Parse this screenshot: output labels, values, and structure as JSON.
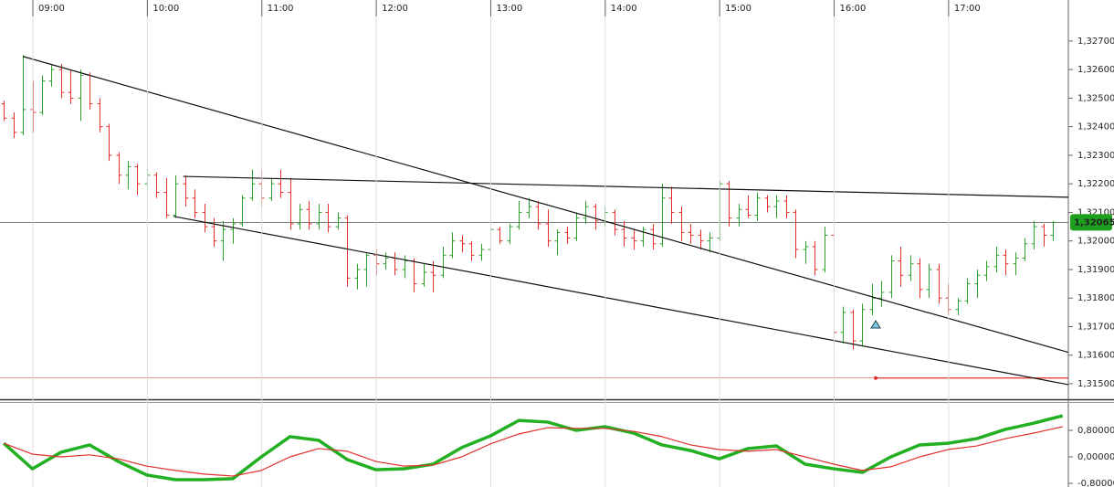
{
  "chart_data": [
    {
      "type": "ohlc",
      "x": [
        525,
        530,
        535,
        540,
        545,
        550,
        555,
        560,
        565,
        570,
        575,
        580,
        585,
        590,
        595,
        600,
        605,
        610,
        615,
        620,
        625,
        630,
        635,
        640,
        645,
        650,
        655,
        660,
        665,
        670,
        675,
        680,
        685,
        690,
        695,
        700,
        705,
        710,
        715,
        720,
        725,
        730,
        735,
        740,
        745,
        750,
        755,
        760,
        765,
        770,
        775,
        780,
        785,
        790,
        795,
        800,
        805,
        810,
        815,
        820,
        825,
        830,
        835,
        840,
        845,
        850,
        855,
        860,
        865,
        870,
        875,
        880,
        885,
        890,
        895,
        900,
        905,
        910,
        915,
        920,
        925,
        930,
        935,
        940,
        945,
        950,
        955,
        960,
        965,
        970,
        975,
        980,
        985,
        990,
        995,
        1000,
        1005,
        1010,
        1015,
        1020,
        1025,
        1030,
        1035,
        1040,
        1045,
        1050,
        1055,
        1060,
        1065,
        1070,
        1075
      ],
      "open": [
        1.3248,
        1.3243,
        1.3238,
        1.3246,
        1.3245,
        1.3256,
        1.326,
        1.3252,
        1.325,
        1.3258,
        1.3248,
        1.324,
        1.323,
        1.3223,
        1.3226,
        1.322,
        1.3223,
        1.3217,
        1.3209,
        1.322,
        1.3215,
        1.321,
        1.3205,
        1.32,
        1.3204,
        1.3206,
        1.3215,
        1.322,
        1.3215,
        1.322,
        1.3217,
        1.3206,
        1.3211,
        1.3206,
        1.321,
        1.3205,
        1.3208,
        1.3187,
        1.319,
        1.3195,
        1.3192,
        1.3194,
        1.319,
        1.3193,
        1.3185,
        1.3189,
        1.3188,
        1.3195,
        1.32,
        1.3199,
        1.3195,
        1.3197,
        1.3204,
        1.32,
        1.3205,
        1.321,
        1.3212,
        1.3206,
        1.32,
        1.3203,
        1.3201,
        1.3208,
        1.3212,
        1.3207,
        1.321,
        1.3204,
        1.3201,
        1.32,
        1.3204,
        1.3199,
        1.3215,
        1.321,
        1.3203,
        1.3202,
        1.32,
        1.3201,
        1.322,
        1.3208,
        1.3211,
        1.3209,
        1.3215,
        1.3212,
        1.3214,
        1.321,
        1.3197,
        1.3198,
        1.319,
        1.3202,
        1.3168,
        1.3175,
        1.3165,
        1.3176,
        1.318,
        1.3182,
        1.3193,
        1.3188,
        1.3192,
        1.3183,
        1.319,
        1.318,
        1.3176,
        1.3179,
        1.3185,
        1.3188,
        1.3191,
        1.3195,
        1.3192,
        1.3194,
        1.3199,
        1.3205,
        1.3202
      ],
      "high": [
        1.3249,
        1.3245,
        1.3265,
        1.3256,
        1.3258,
        1.3262,
        1.3262,
        1.326,
        1.326,
        1.3259,
        1.325,
        1.3241,
        1.3231,
        1.3228,
        1.3227,
        1.3226,
        1.3224,
        1.3222,
        1.3223,
        1.3223,
        1.3218,
        1.3213,
        1.3208,
        1.3207,
        1.3208,
        1.3216,
        1.3225,
        1.3225,
        1.3222,
        1.3225,
        1.3222,
        1.3213,
        1.3214,
        1.3213,
        1.3213,
        1.321,
        1.3209,
        1.3192,
        1.3196,
        1.3197,
        1.3196,
        1.3196,
        1.3195,
        1.3194,
        1.3192,
        1.3193,
        1.3198,
        1.3203,
        1.3202,
        1.32,
        1.3199,
        1.3205,
        1.3205,
        1.3206,
        1.3214,
        1.3215,
        1.3214,
        1.3211,
        1.3204,
        1.3205,
        1.321,
        1.3214,
        1.3213,
        1.3212,
        1.3211,
        1.3207,
        1.3204,
        1.3205,
        1.3206,
        1.322,
        1.3219,
        1.3212,
        1.3206,
        1.3204,
        1.3203,
        1.3221,
        1.3221,
        1.3213,
        1.3216,
        1.3217,
        1.3216,
        1.3216,
        1.3216,
        1.3211,
        1.32,
        1.32,
        1.3205,
        1.3203,
        1.3177,
        1.3176,
        1.3178,
        1.3185,
        1.3186,
        1.3195,
        1.3198,
        1.3195,
        1.3194,
        1.3192,
        1.3192,
        1.3185,
        1.318,
        1.3187,
        1.319,
        1.3193,
        1.3198,
        1.3197,
        1.3196,
        1.3201,
        1.3207,
        1.3206,
        1.3207
      ],
      "low": [
        1.3242,
        1.3236,
        1.3237,
        1.3238,
        1.3244,
        1.3254,
        1.325,
        1.3248,
        1.3242,
        1.3246,
        1.3238,
        1.3228,
        1.322,
        1.3218,
        1.3216,
        1.3218,
        1.3215,
        1.3208,
        1.3208,
        1.3212,
        1.3208,
        1.3203,
        1.3198,
        1.3193,
        1.3199,
        1.3205,
        1.3214,
        1.3212,
        1.3214,
        1.3215,
        1.3204,
        1.3204,
        1.3204,
        1.3204,
        1.3203,
        1.3204,
        1.3184,
        1.3183,
        1.3184,
        1.3188,
        1.319,
        1.3188,
        1.3187,
        1.3182,
        1.3184,
        1.3182,
        1.3187,
        1.3194,
        1.3196,
        1.3193,
        1.3193,
        1.3196,
        1.3199,
        1.3199,
        1.3204,
        1.3208,
        1.3204,
        1.3198,
        1.3195,
        1.3199,
        1.32,
        1.3206,
        1.3204,
        1.3205,
        1.3202,
        1.3198,
        1.3197,
        1.3198,
        1.3197,
        1.3198,
        1.3206,
        1.32,
        1.3199,
        1.3197,
        1.3196,
        1.32,
        1.3205,
        1.3205,
        1.3208,
        1.3207,
        1.321,
        1.3208,
        1.3208,
        1.3194,
        1.3192,
        1.3188,
        1.3189,
        1.3163,
        1.3164,
        1.3162,
        1.3163,
        1.3174,
        1.3177,
        1.318,
        1.3184,
        1.3186,
        1.318,
        1.318,
        1.3178,
        1.3174,
        1.3174,
        1.3178,
        1.318,
        1.3186,
        1.3189,
        1.3188,
        1.3188,
        1.3193,
        1.3197,
        1.3198,
        1.32
      ],
      "close": [
        1.3243,
        1.3238,
        1.3246,
        1.3245,
        1.3256,
        1.326,
        1.3252,
        1.325,
        1.3258,
        1.3248,
        1.324,
        1.323,
        1.3223,
        1.3226,
        1.322,
        1.3223,
        1.3217,
        1.3209,
        1.322,
        1.3215,
        1.321,
        1.3205,
        1.32,
        1.3204,
        1.3206,
        1.3215,
        1.322,
        1.3215,
        1.322,
        1.3217,
        1.3206,
        1.3211,
        1.3206,
        1.321,
        1.3205,
        1.3208,
        1.3187,
        1.319,
        1.3195,
        1.3192,
        1.3194,
        1.319,
        1.3193,
        1.3185,
        1.3189,
        1.3188,
        1.3195,
        1.32,
        1.3199,
        1.3195,
        1.3197,
        1.3204,
        1.32,
        1.3205,
        1.321,
        1.3212,
        1.3206,
        1.32,
        1.3203,
        1.3201,
        1.3208,
        1.3212,
        1.3207,
        1.321,
        1.3204,
        1.3201,
        1.32,
        1.3204,
        1.3199,
        1.3215,
        1.321,
        1.3203,
        1.3202,
        1.32,
        1.3201,
        1.322,
        1.3208,
        1.3211,
        1.3209,
        1.3215,
        1.3212,
        1.3214,
        1.321,
        1.3197,
        1.3198,
        1.319,
        1.3202,
        1.3168,
        1.3175,
        1.3165,
        1.3176,
        1.318,
        1.3182,
        1.3193,
        1.3188,
        1.3192,
        1.3183,
        1.319,
        1.318,
        1.3176,
        1.3179,
        1.3185,
        1.3188,
        1.3191,
        1.3195,
        1.3192,
        1.3194,
        1.3199,
        1.3205,
        1.3202,
        1.32065
      ],
      "up_color": "#2ca02c",
      "down_color": "#e0302c",
      "xlim": [
        523,
        1083
      ],
      "xticks": [
        {
          "value": 540,
          "label": "09:00"
        },
        {
          "value": 600,
          "label": "10:00"
        },
        {
          "value": 660,
          "label": "11:00"
        },
        {
          "value": 720,
          "label": "12:00"
        },
        {
          "value": 780,
          "label": "13:00"
        },
        {
          "value": 840,
          "label": "14:00"
        },
        {
          "value": 900,
          "label": "15:00"
        },
        {
          "value": 960,
          "label": "16:00"
        },
        {
          "value": 1020,
          "label": "17:00"
        }
      ],
      "ylim": [
        1.314456,
        1.32786
      ],
      "yticks": [
        {
          "value": 1.327,
          "label": "1,32700"
        },
        {
          "value": 1.326,
          "label": "1,32600"
        },
        {
          "value": 1.325,
          "label": "1,32500"
        },
        {
          "value": 1.324,
          "label": "1,32400"
        },
        {
          "value": 1.323,
          "label": "1,32300"
        },
        {
          "value": 1.322,
          "label": "1,32200"
        },
        {
          "value": 1.321,
          "label": "1,32100"
        },
        {
          "value": 1.32,
          "label": "1,32000"
        },
        {
          "value": 1.319,
          "label": "1,31900"
        },
        {
          "value": 1.318,
          "label": "1,31800"
        },
        {
          "value": 1.317,
          "label": "1,31700"
        },
        {
          "value": 1.316,
          "label": "1,31600"
        },
        {
          "value": 1.315,
          "label": "1,31500"
        }
      ],
      "grid": true,
      "trendlines": [
        {
          "x": [
            535,
            1083
          ],
          "values": [
            1.32646,
            1.3161
          ]
        },
        {
          "x": [
            619,
            1083
          ],
          "values": [
            1.32226,
            1.32153
          ]
        },
        {
          "x": [
            614,
            1083
          ],
          "values": [
            1.32086,
            1.31497
          ]
        }
      ],
      "last": {
        "value": 1.32065,
        "label": "1,32065",
        "color": "#1ea01e"
      },
      "level": {
        "x": 982,
        "value": 1.3152,
        "color": "#e0302c"
      },
      "marker": {
        "x": 982,
        "value": 1.31708,
        "color": "#7ec8e3"
      }
    },
    {
      "type": "line",
      "x": [
        525,
        540,
        555,
        570,
        585,
        600,
        615,
        630,
        645,
        660,
        675,
        690,
        705,
        720,
        735,
        750,
        765,
        780,
        795,
        810,
        825,
        840,
        855,
        870,
        885,
        900,
        915,
        930,
        945,
        960,
        975,
        990,
        1005,
        1020,
        1035,
        1050,
        1065,
        1080
      ],
      "xlim": [
        523,
        1083
      ],
      "ylim": [
        -0.91,
        1.655
      ],
      "yticks": [
        {
          "value": 0.8,
          "label": "0,80000"
        },
        {
          "value": 0,
          "label": "0,00000"
        },
        {
          "value": -0.8,
          "label": "-0,80000"
        }
      ],
      "series": [
        {
          "color": "#22b022",
          "width": 3.5,
          "values": [
            0.41,
            -0.36,
            0.14,
            0.36,
            -0.14,
            -0.55,
            -0.69,
            -0.69,
            -0.66,
            0,
            0.61,
            0.5,
            -0.08,
            -0.39,
            -0.36,
            -0.22,
            0.28,
            0.63,
            1.1,
            1.05,
            0.8,
            0.91,
            0.72,
            0.36,
            0.19,
            -0.06,
            0.25,
            0.33,
            -0.22,
            -0.36,
            -0.47,
            0,
            0.36,
            0.41,
            0.55,
            0.83,
            1.02,
            1.24
          ]
        },
        {
          "color": "#e0302c",
          "width": 1.2,
          "values": [
            0.41,
            0.08,
            0,
            0.06,
            -0.06,
            -0.28,
            -0.41,
            -0.52,
            -0.58,
            -0.41,
            0,
            0.25,
            0.17,
            -0.14,
            -0.28,
            -0.25,
            0,
            0.39,
            0.69,
            0.88,
            0.86,
            0.86,
            0.77,
            0.61,
            0.36,
            0.22,
            0.17,
            0.22,
            0,
            -0.22,
            -0.41,
            -0.3,
            0,
            0.22,
            0.33,
            0.55,
            0.72,
            0.91
          ]
        }
      ]
    }
  ]
}
